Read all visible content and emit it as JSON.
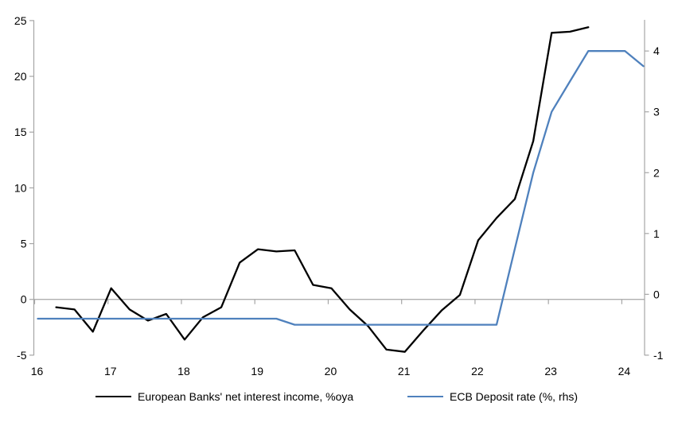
{
  "chart_data": {
    "type": "line",
    "title": "",
    "frequency": "quarterly",
    "series": [
      {
        "name": "European Banks' net interest income, %oya",
        "axis": "left",
        "color": "#000000",
        "start": "2016Q2",
        "values": [
          -0.7,
          -0.9,
          -2.9,
          1.0,
          -0.9,
          -1.9,
          -1.3,
          -3.6,
          -1.6,
          -0.7,
          3.3,
          4.5,
          4.3,
          4.4,
          1.3,
          1.0,
          -0.9,
          -2.4,
          -4.5,
          -4.7,
          -2.8,
          -1.0,
          0.4,
          5.3,
          7.3,
          9.0,
          14.2,
          23.9,
          24.0,
          24.4
        ]
      },
      {
        "name": "ECB Deposit rate (%, rhs)",
        "axis": "right",
        "color": "#4f81bd",
        "start": "2016Q1",
        "values": [
          -0.4,
          -0.4,
          -0.4,
          -0.4,
          -0.4,
          -0.4,
          -0.4,
          -0.4,
          -0.4,
          -0.4,
          -0.4,
          -0.4,
          -0.4,
          -0.4,
          -0.5,
          -0.5,
          -0.5,
          -0.5,
          -0.5,
          -0.5,
          -0.5,
          -0.5,
          -0.5,
          -0.5,
          -0.5,
          -0.5,
          0.75,
          2.0,
          3.0,
          3.5,
          4.0,
          4.0,
          4.0,
          3.75
        ]
      }
    ],
    "x_axis": {
      "min": 16,
      "max": 24.31,
      "tick_labels": [
        "16",
        "17",
        "18",
        "19",
        "20",
        "21",
        "22",
        "23",
        "24"
      ],
      "tick_values": [
        16,
        17,
        18,
        19,
        20,
        21,
        22,
        23,
        24
      ]
    },
    "left_axis": {
      "min": -5,
      "max": 25,
      "tick_values": [
        25,
        20,
        15,
        10,
        5,
        0,
        -5
      ],
      "tick_labels": [
        "25",
        "20",
        "15",
        "10",
        "5",
        "0",
        "-5"
      ]
    },
    "right_axis": {
      "min": -1,
      "max": 4.5,
      "tick_values": [
        4,
        3,
        2,
        1,
        0,
        -1
      ],
      "tick_labels": [
        "4",
        "3",
        "2",
        "1",
        "0",
        "-1"
      ]
    },
    "grid": "zero-line-only",
    "legend_position": "bottom",
    "colors": {
      "axis_line": "#a6a6a6",
      "zero_gridline": "#a6a6a6",
      "text": "#000000"
    }
  },
  "legend": {
    "item1": "European Banks' net interest income, %oya",
    "item2": "ECB Deposit rate (%, rhs)"
  }
}
